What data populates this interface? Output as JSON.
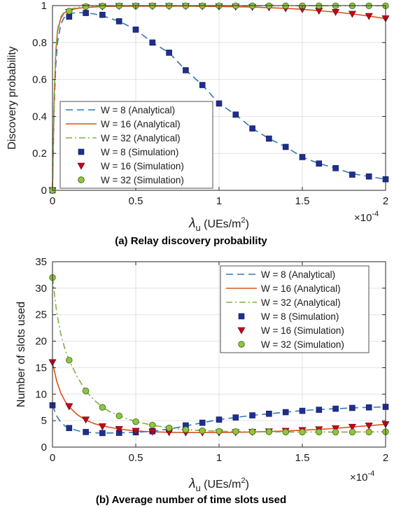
{
  "colors": {
    "w8": "#2f78b7",
    "w16": "#d9541b",
    "w32": "#7cb04a",
    "marker_w8": "#1f2f8f",
    "marker_w16": "#c8001b",
    "marker_w32": "#8dc63f",
    "grid": "#e2e2e2",
    "axis": "#262626"
  },
  "chart_data": [
    {
      "type": "line",
      "caption": "(a) Relay discovery probability",
      "ylabel": "Discovery probability",
      "xlabel": {
        "base": "λ",
        "sub": "u",
        "unit_open": " (UEs/m",
        "sup": "2",
        "unit_close": ")"
      },
      "x_multiplier": {
        "times": "×10",
        "exp": "-4"
      },
      "xlim": [
        0,
        2
      ],
      "ylim": [
        0,
        1
      ],
      "xticks": [
        0,
        0.5,
        1,
        1.5,
        2
      ],
      "xtick_labels": [
        "0",
        "0.5",
        "1",
        "1.5",
        "2"
      ],
      "yticks": [
        0,
        0.2,
        0.4,
        0.6,
        0.8,
        1
      ],
      "ytick_labels": [
        "0",
        "0.2",
        "0.4",
        "0.6",
        "0.8",
        "1"
      ],
      "grid": true,
      "legend_position": "lower-left",
      "legend": [
        "W = 8 (Analytical)",
        "W = 16 (Analytical)",
        "W = 32 (Analytical)",
        "W = 8 (Simulation)",
        "W = 16 (Simulation)",
        "W = 32 (Simulation)"
      ],
      "series": [
        {
          "name": "W = 8 (Analytical)",
          "kind": "line",
          "style": "dashed",
          "color_key": "w8",
          "x": [
            0,
            0.01,
            0.02,
            0.03,
            0.05,
            0.07,
            0.1,
            0.15,
            0.2,
            0.25,
            0.3,
            0.4,
            0.5,
            0.6,
            0.7,
            0.8,
            0.9,
            1.0,
            1.1,
            1.2,
            1.3,
            1.4,
            1.5,
            1.6,
            1.7,
            1.8,
            1.9,
            2.0
          ],
          "y": [
            0,
            0.45,
            0.68,
            0.8,
            0.9,
            0.935,
            0.955,
            0.963,
            0.96,
            0.955,
            0.945,
            0.915,
            0.87,
            0.8,
            0.745,
            0.65,
            0.57,
            0.47,
            0.41,
            0.335,
            0.28,
            0.235,
            0.18,
            0.145,
            0.12,
            0.09,
            0.075,
            0.06
          ]
        },
        {
          "name": "W = 16 (Analytical)",
          "kind": "line",
          "style": "solid",
          "color_key": "w16",
          "x": [
            0,
            0.01,
            0.02,
            0.03,
            0.05,
            0.07,
            0.1,
            0.15,
            0.2,
            0.3,
            0.5,
            0.8,
            1.0,
            1.2,
            1.4,
            1.5,
            1.6,
            1.7,
            1.8,
            1.9,
            2.0
          ],
          "y": [
            0,
            0.5,
            0.75,
            0.86,
            0.93,
            0.96,
            0.975,
            0.985,
            0.99,
            0.995,
            0.997,
            0.997,
            0.995,
            0.992,
            0.985,
            0.98,
            0.972,
            0.965,
            0.955,
            0.943,
            0.93
          ]
        },
        {
          "name": "W = 32 (Analytical)",
          "kind": "line",
          "style": "dashdot",
          "color_key": "w32",
          "x": [
            0,
            0.01,
            0.02,
            0.03,
            0.05,
            0.07,
            0.1,
            0.15,
            0.2,
            0.3,
            0.5,
            1.0,
            1.5,
            2.0
          ],
          "y": [
            0,
            0.5,
            0.76,
            0.87,
            0.94,
            0.965,
            0.98,
            0.99,
            0.995,
            0.998,
            0.999,
            0.999,
            0.999,
            0.999
          ]
        },
        {
          "name": "W = 8 (Simulation)",
          "kind": "marker",
          "marker": "square",
          "color_key": "marker_w8",
          "x": [
            0,
            0.1,
            0.2,
            0.3,
            0.4,
            0.5,
            0.6,
            0.7,
            0.8,
            0.9,
            1.0,
            1.1,
            1.2,
            1.3,
            1.4,
            1.5,
            1.6,
            1.7,
            1.8,
            1.9,
            2.0
          ],
          "y": [
            0,
            0.94,
            0.96,
            0.95,
            0.915,
            0.87,
            0.8,
            0.745,
            0.65,
            0.57,
            0.47,
            0.41,
            0.335,
            0.28,
            0.235,
            0.18,
            0.145,
            0.12,
            0.085,
            0.075,
            0.06
          ]
        },
        {
          "name": "W = 16 (Simulation)",
          "kind": "marker",
          "marker": "triangle-down",
          "color_key": "marker_w16",
          "x": [
            0,
            0.1,
            0.2,
            0.3,
            0.4,
            0.5,
            0.6,
            0.7,
            0.8,
            0.9,
            1.0,
            1.1,
            1.2,
            1.3,
            1.4,
            1.5,
            1.6,
            1.7,
            1.8,
            1.9,
            2.0
          ],
          "y": [
            0,
            0.965,
            0.99,
            0.995,
            0.997,
            0.997,
            0.997,
            0.997,
            0.997,
            0.996,
            0.995,
            0.994,
            0.992,
            0.99,
            0.985,
            0.98,
            0.972,
            0.965,
            0.955,
            0.943,
            0.93
          ]
        },
        {
          "name": "W = 32 (Simulation)",
          "kind": "marker",
          "marker": "circle",
          "color_key": "marker_w32",
          "x": [
            0,
            0.1,
            0.2,
            0.3,
            0.4,
            0.5,
            0.6,
            0.7,
            0.8,
            0.9,
            1.0,
            1.1,
            1.2,
            1.3,
            1.4,
            1.5,
            1.6,
            1.7,
            1.8,
            1.9,
            2.0
          ],
          "y": [
            0,
            0.97,
            0.995,
            0.998,
            0.999,
            0.999,
            0.999,
            0.999,
            0.999,
            0.999,
            0.999,
            0.999,
            0.999,
            0.999,
            0.999,
            0.999,
            0.999,
            0.999,
            0.999,
            0.999,
            0.999
          ]
        }
      ]
    },
    {
      "type": "line",
      "caption": "(b) Average number of time slots used",
      "ylabel": "Number of slots used",
      "xlabel": {
        "base": "λ",
        "sub": "u",
        "unit_open": " (UEs/m",
        "sup": "2",
        "unit_close": ")"
      },
      "x_multiplier": {
        "times": "×10",
        "exp": "-4"
      },
      "xlim": [
        0,
        2
      ],
      "ylim": [
        0,
        35
      ],
      "xticks": [
        0,
        0.5,
        1,
        1.5,
        2
      ],
      "xtick_labels": [
        "0",
        "0.5",
        "1",
        "1.5",
        "2"
      ],
      "yticks": [
        0,
        5,
        10,
        15,
        20,
        25,
        30,
        35
      ],
      "ytick_labels": [
        "0",
        "5",
        "10",
        "15",
        "20",
        "25",
        "30",
        "35"
      ],
      "grid": true,
      "legend_position": "top-right",
      "legend": [
        "W = 8 (Analytical)",
        "W = 16 (Analytical)",
        "W = 32 (Analytical)",
        "W = 8 (Simulation)",
        "W = 16 (Simulation)",
        "W = 32 (Simulation)"
      ],
      "series": [
        {
          "name": "W = 8 (Analytical)",
          "kind": "line",
          "style": "dashed",
          "color_key": "w8",
          "x": [
            0,
            0.025,
            0.05,
            0.075,
            0.1,
            0.15,
            0.2,
            0.25,
            0.3,
            0.4,
            0.5,
            0.6,
            0.7,
            0.8,
            0.9,
            1.0,
            1.1,
            1.2,
            1.3,
            1.4,
            1.5,
            1.6,
            1.7,
            1.8,
            1.9,
            2.0
          ],
          "y": [
            7.9,
            5.9,
            4.7,
            4.0,
            3.6,
            3.1,
            2.85,
            2.7,
            2.65,
            2.7,
            2.8,
            3.0,
            3.4,
            4.0,
            4.6,
            5.2,
            5.6,
            6.0,
            6.3,
            6.6,
            6.9,
            7.1,
            7.25,
            7.4,
            7.5,
            7.6
          ]
        },
        {
          "name": "W = 16 (Analytical)",
          "kind": "line",
          "style": "solid",
          "color_key": "w16",
          "x": [
            0,
            0.025,
            0.05,
            0.075,
            0.1,
            0.15,
            0.2,
            0.25,
            0.3,
            0.4,
            0.5,
            0.6,
            0.7,
            0.8,
            0.9,
            1.0,
            1.1,
            1.2,
            1.3,
            1.4,
            1.5,
            1.6,
            1.7,
            1.8,
            1.9,
            2.0
          ],
          "y": [
            16.0,
            12.5,
            10.2,
            8.7,
            7.6,
            6.1,
            5.1,
            4.45,
            4.0,
            3.4,
            3.05,
            2.9,
            2.8,
            2.75,
            2.75,
            2.75,
            2.8,
            2.85,
            2.95,
            3.05,
            3.2,
            3.35,
            3.55,
            3.8,
            4.05,
            4.3
          ]
        },
        {
          "name": "W = 32 (Analytical)",
          "kind": "line",
          "style": "dashdot",
          "color_key": "w32",
          "x": [
            0,
            0.025,
            0.05,
            0.075,
            0.1,
            0.15,
            0.2,
            0.25,
            0.3,
            0.35,
            0.4,
            0.5,
            0.6,
            0.7,
            0.8,
            0.9,
            1.0,
            1.2,
            1.4,
            1.6,
            1.8,
            2.0
          ],
          "y": [
            32.0,
            25.5,
            21.3,
            18.5,
            16.4,
            13.2,
            10.6,
            8.9,
            7.5,
            6.6,
            5.9,
            4.8,
            4.15,
            3.6,
            3.3,
            3.1,
            3.0,
            2.9,
            2.85,
            2.85,
            2.85,
            2.9
          ]
        },
        {
          "name": "W = 8 (Simulation)",
          "kind": "marker",
          "marker": "square",
          "color_key": "marker_w8",
          "x": [
            0,
            0.1,
            0.2,
            0.3,
            0.4,
            0.5,
            0.6,
            0.7,
            0.8,
            0.9,
            1.0,
            1.1,
            1.2,
            1.3,
            1.4,
            1.5,
            1.6,
            1.7,
            1.8,
            1.9,
            2.0
          ],
          "y": [
            7.9,
            3.6,
            2.85,
            2.65,
            2.7,
            2.8,
            3.0,
            3.4,
            4.1,
            4.6,
            5.2,
            5.6,
            6.0,
            6.3,
            6.6,
            6.85,
            7.05,
            7.25,
            7.4,
            7.5,
            7.6
          ]
        },
        {
          "name": "W = 16 (Simulation)",
          "kind": "marker",
          "marker": "triangle-down",
          "color_key": "marker_w16",
          "x": [
            0,
            0.1,
            0.2,
            0.3,
            0.4,
            0.5,
            0.6,
            0.7,
            0.8,
            0.9,
            1.0,
            1.1,
            1.2,
            1.3,
            1.4,
            1.5,
            1.6,
            1.7,
            1.8,
            1.9,
            2.0
          ],
          "y": [
            16.0,
            7.7,
            5.2,
            3.9,
            3.4,
            3.05,
            2.9,
            2.8,
            2.75,
            2.75,
            2.75,
            2.8,
            2.85,
            2.95,
            3.05,
            3.2,
            3.35,
            3.55,
            3.8,
            4.05,
            4.3
          ]
        },
        {
          "name": "W = 32 (Simulation)",
          "kind": "marker",
          "marker": "circle",
          "color_key": "marker_w32",
          "x": [
            0,
            0.1,
            0.2,
            0.3,
            0.4,
            0.5,
            0.6,
            0.7,
            0.8,
            0.9,
            1.0,
            1.1,
            1.2,
            1.3,
            1.4,
            1.5,
            1.6,
            1.7,
            1.8,
            1.9,
            2.0
          ],
          "y": [
            32.0,
            16.4,
            10.6,
            7.5,
            5.9,
            4.8,
            4.15,
            3.6,
            3.3,
            3.1,
            3.0,
            2.95,
            2.9,
            2.9,
            2.85,
            2.85,
            2.85,
            2.85,
            2.85,
            2.85,
            2.9
          ]
        }
      ]
    }
  ]
}
